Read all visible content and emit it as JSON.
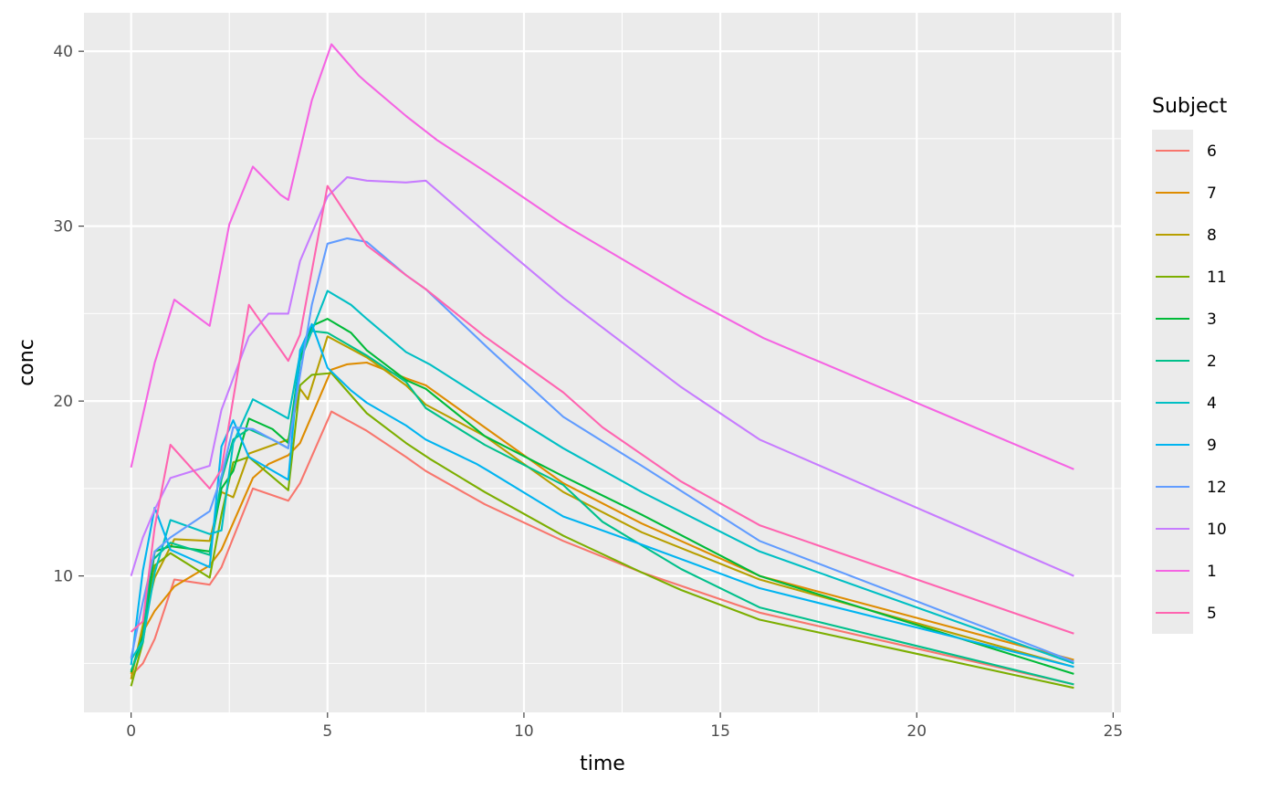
{
  "chart_data": {
    "type": "line",
    "xlabel": "time",
    "ylabel": "conc",
    "xlim": [
      -1.2,
      25.2
    ],
    "ylim": [
      2.2,
      42.2
    ],
    "x_ticks": [
      0,
      5,
      10,
      15,
      20,
      25
    ],
    "y_ticks": [
      10,
      20,
      30,
      40
    ],
    "grid": true,
    "panel_background": "#ebebeb",
    "legend": {
      "title": "Subject",
      "placement": "right"
    },
    "series": [
      {
        "name": "6",
        "color": "#F8766D",
        "points": [
          [
            0,
            4.3
          ],
          [
            0.3,
            5.0
          ],
          [
            0.6,
            6.4
          ],
          [
            1.1,
            9.8
          ],
          [
            2.0,
            9.5
          ],
          [
            2.3,
            10.5
          ],
          [
            3.1,
            15.0
          ],
          [
            4.0,
            14.3
          ],
          [
            4.3,
            15.3
          ],
          [
            5.1,
            19.4
          ],
          [
            6.0,
            18.3
          ],
          [
            7.0,
            16.8
          ],
          [
            7.5,
            16.0
          ],
          [
            9.0,
            14.1
          ],
          [
            11.0,
            12.0
          ],
          [
            13.0,
            10.2
          ],
          [
            16.0,
            7.9
          ],
          [
            24.0,
            3.8
          ]
        ]
      },
      {
        "name": "7",
        "color": "#DE8C00",
        "points": [
          [
            0,
            4.4
          ],
          [
            0.3,
            6.8
          ],
          [
            0.6,
            8.0
          ],
          [
            1.1,
            9.4
          ],
          [
            2.0,
            10.6
          ],
          [
            2.3,
            11.5
          ],
          [
            3.1,
            15.6
          ],
          [
            3.5,
            16.4
          ],
          [
            4.0,
            16.9
          ],
          [
            4.3,
            17.6
          ],
          [
            5.1,
            21.8
          ],
          [
            5.5,
            22.1
          ],
          [
            6.0,
            22.2
          ],
          [
            7.0,
            21.3
          ],
          [
            7.5,
            20.9
          ],
          [
            9.0,
            18.5
          ],
          [
            11.0,
            15.3
          ],
          [
            13.0,
            13.0
          ],
          [
            16.0,
            10.0
          ],
          [
            24.0,
            5.2
          ]
        ]
      },
      {
        "name": "8",
        "color": "#B79F00",
        "points": [
          [
            0,
            4.1
          ],
          [
            0.3,
            7.2
          ],
          [
            0.6,
            9.9
          ],
          [
            1.1,
            12.1
          ],
          [
            2.0,
            12.0
          ],
          [
            2.3,
            14.8
          ],
          [
            2.6,
            14.5
          ],
          [
            3.0,
            17.0
          ],
          [
            4.0,
            17.8
          ],
          [
            4.3,
            20.7
          ],
          [
            4.5,
            20.1
          ],
          [
            5.0,
            23.7
          ],
          [
            6.0,
            22.5
          ],
          [
            7.0,
            20.9
          ],
          [
            7.5,
            19.8
          ],
          [
            9.0,
            18.0
          ],
          [
            11.0,
            14.8
          ],
          [
            13.0,
            12.5
          ],
          [
            16.0,
            9.8
          ],
          [
            24.0,
            4.8
          ]
        ]
      },
      {
        "name": "11",
        "color": "#7CAE00",
        "points": [
          [
            0,
            3.7
          ],
          [
            0.3,
            6.2
          ],
          [
            0.6,
            10.6
          ],
          [
            1.0,
            11.3
          ],
          [
            2.0,
            9.9
          ],
          [
            2.3,
            13.5
          ],
          [
            2.6,
            16.5
          ],
          [
            3.0,
            16.8
          ],
          [
            4.0,
            14.9
          ],
          [
            4.3,
            20.9
          ],
          [
            4.6,
            21.5
          ],
          [
            5.1,
            21.6
          ],
          [
            6.0,
            19.3
          ],
          [
            7.0,
            17.6
          ],
          [
            7.6,
            16.7
          ],
          [
            9.0,
            14.8
          ],
          [
            11.0,
            12.3
          ],
          [
            13.0,
            10.2
          ],
          [
            14.0,
            9.2
          ],
          [
            16.0,
            7.5
          ],
          [
            24.0,
            3.6
          ]
        ]
      },
      {
        "name": "3",
        "color": "#00BA38",
        "points": [
          [
            0,
            4.5
          ],
          [
            0.3,
            6.6
          ],
          [
            0.6,
            11.4
          ],
          [
            1.0,
            11.7
          ],
          [
            2.0,
            11.4
          ],
          [
            2.3,
            15.0
          ],
          [
            2.6,
            16.0
          ],
          [
            3.0,
            19.0
          ],
          [
            3.6,
            18.4
          ],
          [
            4.0,
            17.6
          ],
          [
            4.3,
            22.4
          ],
          [
            4.6,
            24.3
          ],
          [
            5.0,
            24.7
          ],
          [
            5.6,
            23.9
          ],
          [
            6.0,
            22.9
          ],
          [
            7.0,
            21.2
          ],
          [
            7.5,
            20.7
          ],
          [
            9.0,
            18.0
          ],
          [
            11.0,
            15.7
          ],
          [
            13.0,
            13.5
          ],
          [
            16.0,
            10.0
          ],
          [
            24.0,
            4.4
          ]
        ]
      },
      {
        "name": "2",
        "color": "#00C08B",
        "points": [
          [
            0,
            4.6
          ],
          [
            0.3,
            6.2
          ],
          [
            0.5,
            10.8
          ],
          [
            1.0,
            11.9
          ],
          [
            2.0,
            11.2
          ],
          [
            2.3,
            15.5
          ],
          [
            2.6,
            17.8
          ],
          [
            3.0,
            18.4
          ],
          [
            3.6,
            17.8
          ],
          [
            4.0,
            17.3
          ],
          [
            4.3,
            22.3
          ],
          [
            4.6,
            24.0
          ],
          [
            5.0,
            23.9
          ],
          [
            6.0,
            22.6
          ],
          [
            7.0,
            21.1
          ],
          [
            7.5,
            19.6
          ],
          [
            9.0,
            17.5
          ],
          [
            11.0,
            15.2
          ],
          [
            12.0,
            13.1
          ],
          [
            14.0,
            10.4
          ],
          [
            16.0,
            8.2
          ],
          [
            24.0,
            3.8
          ]
        ]
      },
      {
        "name": "4",
        "color": "#00BFC4",
        "points": [
          [
            0,
            5.2
          ],
          [
            0.3,
            6.3
          ],
          [
            0.6,
            10.2
          ],
          [
            1.0,
            13.2
          ],
          [
            2.0,
            12.4
          ],
          [
            2.3,
            12.6
          ],
          [
            2.6,
            17.6
          ],
          [
            3.1,
            20.1
          ],
          [
            3.6,
            19.5
          ],
          [
            4.0,
            19.0
          ],
          [
            4.3,
            22.7
          ],
          [
            4.6,
            24.0
          ],
          [
            5.0,
            26.3
          ],
          [
            5.6,
            25.5
          ],
          [
            6.0,
            24.7
          ],
          [
            7.0,
            22.8
          ],
          [
            7.6,
            22.1
          ],
          [
            9.0,
            20.1
          ],
          [
            11.0,
            17.3
          ],
          [
            13.0,
            14.8
          ],
          [
            16.0,
            11.4
          ],
          [
            24.0,
            5.0
          ]
        ]
      },
      {
        "name": "9",
        "color": "#00B4F0",
        "points": [
          [
            0,
            4.9
          ],
          [
            0.3,
            10.3
          ],
          [
            0.6,
            13.9
          ],
          [
            1.0,
            11.5
          ],
          [
            2.0,
            10.5
          ],
          [
            2.3,
            17.4
          ],
          [
            2.6,
            18.9
          ],
          [
            3.0,
            16.8
          ],
          [
            4.0,
            15.5
          ],
          [
            4.3,
            22.9
          ],
          [
            4.6,
            24.4
          ],
          [
            5.0,
            21.9
          ],
          [
            5.6,
            20.6
          ],
          [
            6.0,
            19.9
          ],
          [
            7.0,
            18.6
          ],
          [
            7.5,
            17.8
          ],
          [
            8.8,
            16.4
          ],
          [
            9.1,
            16.0
          ],
          [
            11.0,
            13.4
          ],
          [
            13.0,
            11.8
          ],
          [
            16.0,
            9.3
          ],
          [
            24.0,
            4.8
          ]
        ]
      },
      {
        "name": "12",
        "color": "#619CFF",
        "points": [
          [
            0,
            5.3
          ],
          [
            0.3,
            8.5
          ],
          [
            0.6,
            11.4
          ],
          [
            1.0,
            12.2
          ],
          [
            2.0,
            13.7
          ],
          [
            2.3,
            15.7
          ],
          [
            2.6,
            18.5
          ],
          [
            3.1,
            18.4
          ],
          [
            3.6,
            17.8
          ],
          [
            4.0,
            17.3
          ],
          [
            4.3,
            21.5
          ],
          [
            4.6,
            25.5
          ],
          [
            5.0,
            29.0
          ],
          [
            5.5,
            29.3
          ],
          [
            6.0,
            29.1
          ],
          [
            7.0,
            27.2
          ],
          [
            7.5,
            26.4
          ],
          [
            9.1,
            23.0
          ],
          [
            11.0,
            19.1
          ],
          [
            13.0,
            16.3
          ],
          [
            16.0,
            12.0
          ],
          [
            24.0,
            5.1
          ]
        ]
      },
      {
        "name": "10",
        "color": "#C77CFF",
        "points": [
          [
            0,
            10.0
          ],
          [
            0.3,
            12.2
          ],
          [
            0.6,
            13.8
          ],
          [
            1.0,
            15.6
          ],
          [
            2.0,
            16.3
          ],
          [
            2.3,
            19.5
          ],
          [
            3.0,
            23.7
          ],
          [
            3.5,
            25.0
          ],
          [
            4.0,
            25.0
          ],
          [
            4.3,
            28.0
          ],
          [
            5.0,
            31.7
          ],
          [
            5.5,
            32.8
          ],
          [
            6.0,
            32.6
          ],
          [
            7.0,
            32.5
          ],
          [
            7.5,
            32.6
          ],
          [
            9.1,
            29.5
          ],
          [
            11.0,
            25.9
          ],
          [
            14.0,
            20.8
          ],
          [
            16.0,
            17.8
          ],
          [
            24.0,
            10.0
          ]
        ]
      },
      {
        "name": "1",
        "color": "#F564E3",
        "points": [
          [
            0,
            16.2
          ],
          [
            0.6,
            22.2
          ],
          [
            1.1,
            25.8
          ],
          [
            2.0,
            24.3
          ],
          [
            2.5,
            30.1
          ],
          [
            3.1,
            33.4
          ],
          [
            3.8,
            31.8
          ],
          [
            4.0,
            31.5
          ],
          [
            4.6,
            37.2
          ],
          [
            5.1,
            40.4
          ],
          [
            5.8,
            38.6
          ],
          [
            6.0,
            38.2
          ],
          [
            7.0,
            36.3
          ],
          [
            7.8,
            34.9
          ],
          [
            9.1,
            33.0
          ],
          [
            11.0,
            30.1
          ],
          [
            14.1,
            26.0
          ],
          [
            16.1,
            23.6
          ],
          [
            24.0,
            16.1
          ]
        ]
      },
      {
        "name": "5",
        "color": "#FF64B0",
        "points": [
          [
            0,
            6.8
          ],
          [
            0.3,
            7.4
          ],
          [
            0.6,
            12.8
          ],
          [
            1.0,
            17.5
          ],
          [
            2.0,
            15.0
          ],
          [
            2.3,
            16.1
          ],
          [
            3.0,
            25.5
          ],
          [
            4.0,
            22.3
          ],
          [
            4.3,
            23.8
          ],
          [
            5.0,
            32.3
          ],
          [
            6.0,
            28.9
          ],
          [
            7.0,
            27.2
          ],
          [
            7.5,
            26.4
          ],
          [
            9.0,
            23.7
          ],
          [
            11.0,
            20.5
          ],
          [
            12.0,
            18.5
          ],
          [
            14.0,
            15.4
          ],
          [
            16.0,
            12.9
          ],
          [
            24.0,
            6.7
          ]
        ]
      }
    ]
  }
}
